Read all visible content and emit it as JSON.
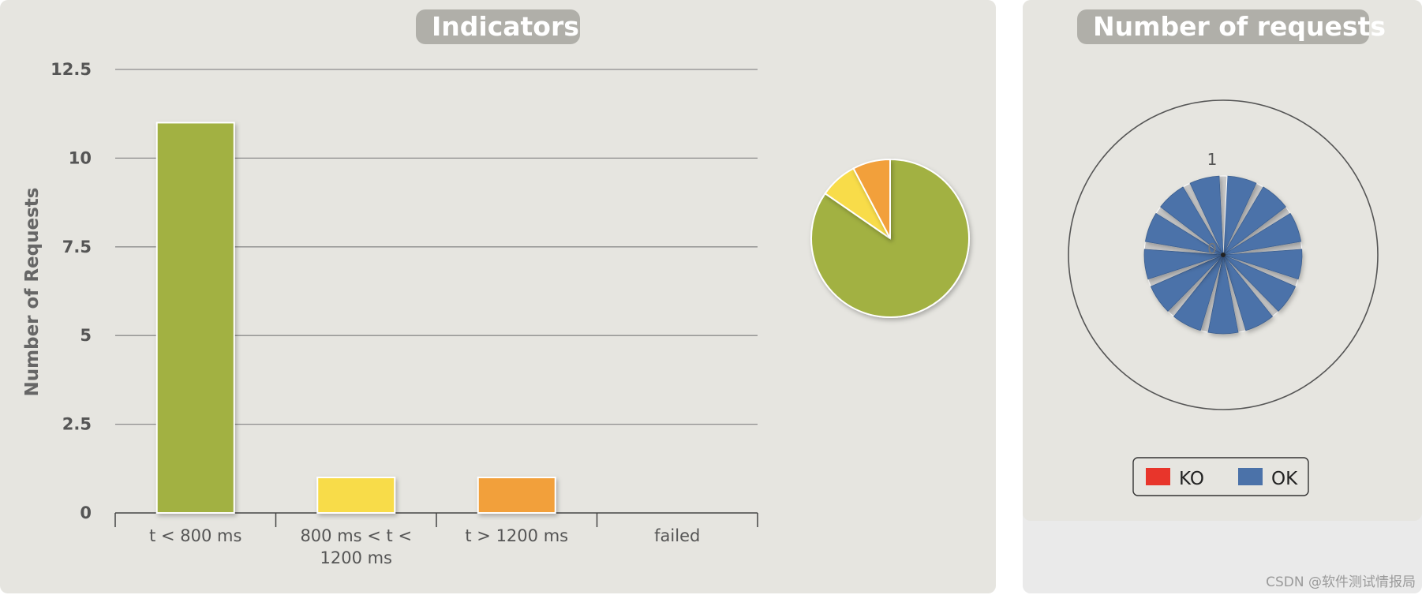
{
  "indicators_title": "Indicators",
  "requests_title": "Number of requests",
  "chart_data": [
    {
      "type": "bar",
      "title": "Indicators",
      "ylabel": "Number of Requests",
      "xlabel": "",
      "categories": [
        "t < 800 ms",
        "800 ms < t < 1200 ms",
        "t > 1200 ms",
        "failed"
      ],
      "category_lines": [
        [
          "t < 800 ms"
        ],
        [
          "800 ms < t <",
          "1200 ms"
        ],
        [
          "t > 1200 ms"
        ],
        [
          "failed"
        ]
      ],
      "values": [
        11,
        1,
        1,
        0
      ],
      "colors": [
        "#a2b143",
        "#f8dc4a",
        "#f2a03a",
        "#e8352b"
      ],
      "ylim": [
        0,
        12.5
      ],
      "yticks": [
        0,
        2.5,
        5,
        7.5,
        10,
        12.5
      ],
      "ytick_labels": [
        "0",
        "2.5",
        "5",
        "7.5",
        "10",
        "12.5"
      ],
      "grid": true
    },
    {
      "type": "pie",
      "values": [
        11,
        1,
        1,
        0
      ],
      "colors": [
        "#a2b143",
        "#f8dc4a",
        "#f2a03a",
        "#e8352b"
      ]
    },
    {
      "type": "pie",
      "style": "polar",
      "series": [
        {
          "name": "KO",
          "color": "#e8352b",
          "values": [
            0,
            0,
            0,
            0,
            0,
            0,
            0,
            0,
            0,
            0,
            0,
            0,
            0
          ]
        },
        {
          "name": "OK",
          "color": "#4b72a9",
          "values": [
            1,
            1,
            1,
            1,
            1,
            1,
            1,
            1,
            1,
            1,
            1,
            1,
            1
          ]
        }
      ],
      "ticks": [
        "0",
        "1"
      ],
      "legend": "bottom-center"
    }
  ],
  "watermark": "CSDN @软件测试情报局"
}
